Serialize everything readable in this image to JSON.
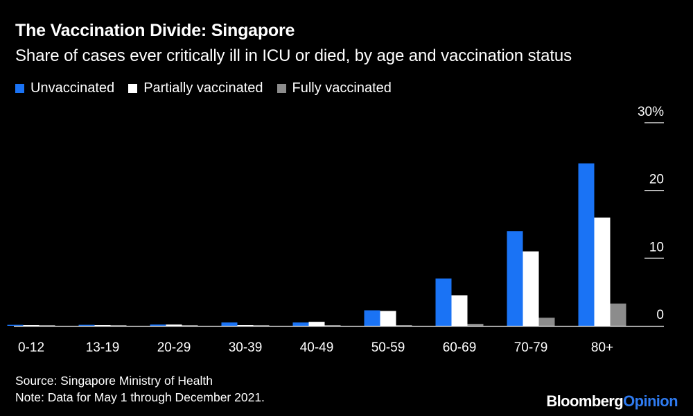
{
  "header": {
    "title": "The Vaccination Divide: Singapore",
    "subtitle": "Share of cases ever critically ill in ICU or died, by age and vaccination status"
  },
  "legend": [
    {
      "label": "Unvaccinated",
      "color": "#1a73f5"
    },
    {
      "label": "Partially vaccinated",
      "color": "#ffffff"
    },
    {
      "label": "Fully vaccinated",
      "color": "#8c8c8c"
    }
  ],
  "footer": {
    "source": "Source: Singapore Ministry of Health",
    "note": "Note: Data for May 1 through December 2021."
  },
  "logo": {
    "brand": "Bloomberg",
    "opinion": "Opinion"
  },
  "chart_data": {
    "type": "bar",
    "title": "The Vaccination Divide: Singapore",
    "subtitle": "Share of cases ever critically ill in ICU or died, by age and vaccination status",
    "categories": [
      "0-12",
      "13-19",
      "20-29",
      "30-39",
      "40-49",
      "50-59",
      "60-69",
      "70-79",
      "80+"
    ],
    "series": [
      {
        "name": "Unvaccinated",
        "color": "#1a73f5",
        "values": [
          0.15,
          0.15,
          0.2,
          0.5,
          0.5,
          2.3,
          7.0,
          14.0,
          24.0
        ]
      },
      {
        "name": "Partially vaccinated",
        "color": "#ffffff",
        "values": [
          0.05,
          0.05,
          0.2,
          0.1,
          0.6,
          2.2,
          4.5,
          11.0,
          16.0
        ]
      },
      {
        "name": "Fully vaccinated",
        "color": "#8c8c8c",
        "values": [
          0.05,
          0.05,
          0.05,
          0.05,
          0.1,
          0.1,
          0.3,
          1.2,
          3.3
        ]
      }
    ],
    "yticks": [
      {
        "value": 0,
        "label": "0"
      },
      {
        "value": 10,
        "label": "10"
      },
      {
        "value": 20,
        "label": "20"
      },
      {
        "value": 30,
        "label": "30%"
      }
    ],
    "ylim": [
      0,
      30
    ],
    "ylabel": "",
    "xlabel": "",
    "axis_side": "right",
    "grid": false,
    "legend_position": "top-left"
  }
}
